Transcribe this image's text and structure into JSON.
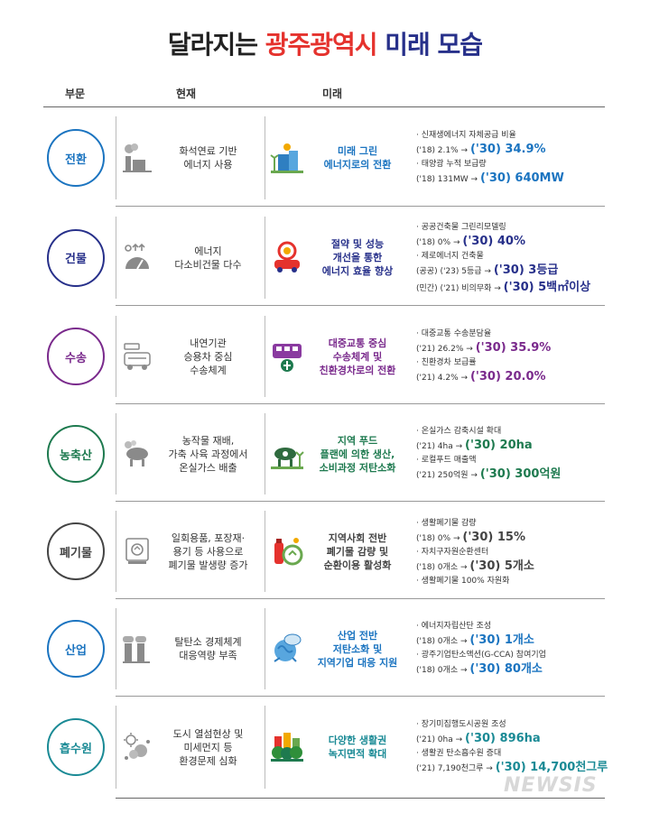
{
  "title": {
    "part1": "달라지는",
    "part2": "광주광역시",
    "part3": "미래 모습"
  },
  "headers": {
    "sector": "부문",
    "current": "현재",
    "future": "미래"
  },
  "rows": [
    {
      "category": "전환",
      "color": "#1b74c0",
      "current": [
        "화석연료 기반",
        "에너지 사용"
      ],
      "future": [
        "미래 그린",
        "에너지로의 전환"
      ],
      "stats": [
        {
          "label": "· 신재생에너지 자체공급 비율",
          "from": "('18) 2.1% →",
          "to": "('30) 34.9%"
        },
        {
          "label": "· 태양광 누적 보급량",
          "from": "('18) 131MW →",
          "to": "('30) 640MW"
        }
      ]
    },
    {
      "category": "건물",
      "color": "#27308a",
      "current": [
        "에너지",
        "다소비건물 다수"
      ],
      "future": [
        "절약 및 성능",
        "개선을 통한",
        "에너지 효율 향상"
      ],
      "stats": [
        {
          "label": "· 공공건축물 그린리모델링",
          "from": "('18) 0% →",
          "to": "('30) 40%"
        },
        {
          "label": "· 제로에너지 건축물",
          "from": "(공공) ('23) 5등급 →",
          "to": "('30) 3등급"
        },
        {
          "label": "",
          "from": "(민간) ('21) 비의무화 →",
          "to": "('30) 5백㎡이상"
        }
      ]
    },
    {
      "category": "수송",
      "color": "#7a2a8c",
      "current": [
        "내연기관",
        "승용차 중심",
        "수송체계"
      ],
      "future": [
        "대중교통 중심",
        "수송체계 및",
        "친환경차로의 전환"
      ],
      "stats": [
        {
          "label": "· 대중교통 수송분담율",
          "from": "('21) 26.2% →",
          "to": "('30) 35.9%"
        },
        {
          "label": "· 친환경차 보급률",
          "from": "('21) 4.2% →",
          "to": "('30) 20.0%"
        }
      ]
    },
    {
      "category": "농축산",
      "color": "#1e7a4f",
      "current": [
        "농작물 재배,",
        "가축 사육 과정에서",
        "온실가스 배출"
      ],
      "future": [
        "지역 푸드",
        "플랜에 의한 생산,",
        "소비과정 저탄소화"
      ],
      "stats": [
        {
          "label": "· 온실가스 감축시설 확대",
          "from": "('21) 4ha →",
          "to": "('30) 20ha"
        },
        {
          "label": "· 로컬푸드 매출액",
          "from": "('21) 250억원 →",
          "to": "('30) 300억원"
        }
      ]
    },
    {
      "category": "폐기물",
      "color": "#444444",
      "current": [
        "일회용품, 포장재·",
        "용기 등 사용으로",
        "폐기물 발생량 증가"
      ],
      "future": [
        "지역사회 전반",
        "폐기물 감량 및",
        "순환이용 활성화"
      ],
      "stats": [
        {
          "label": "· 생활폐기물 감량",
          "from": "('18) 0% →",
          "to": "('30) 15%"
        },
        {
          "label": "· 자치구자원순환센터",
          "from": "('18) 0개소 →",
          "to": "('30) 5개소"
        },
        {
          "label": "· 생활폐기물 100% 자원화",
          "from": "",
          "to": ""
        }
      ]
    },
    {
      "category": "산업",
      "color": "#1b74c0",
      "current": [
        "탈탄소 경제체계",
        "대응역량 부족"
      ],
      "future": [
        "산업 전반",
        "저탄소화 및",
        "지역기업 대응 지원"
      ],
      "stats": [
        {
          "label": "· 에너지자립산단 조성",
          "from": "('18) 0개소 →",
          "to": "('30) 1개소"
        },
        {
          "label": "· 광주기업탄소액션(G-CCA) 참여기업",
          "from": "('18) 0개소 →",
          "to": "('30) 80개소"
        }
      ]
    },
    {
      "category": "흡수원",
      "color": "#1a8a95",
      "current": [
        "도시 열섬현상 및",
        "미세먼지 등",
        "환경문제 심화"
      ],
      "future": [
        "다양한 생활권",
        "녹지면적 확대"
      ],
      "stats": [
        {
          "label": "· 장기미집행도시공원 조성",
          "from": "('21) 0ha →",
          "to": "('30) 896ha"
        },
        {
          "label": "· 생활권 탄소흡수원 증대",
          "from": "('21) 7,190천그루 →",
          "to": "('30) 14,700천그루"
        }
      ]
    }
  ],
  "watermark": "NEWSIS"
}
